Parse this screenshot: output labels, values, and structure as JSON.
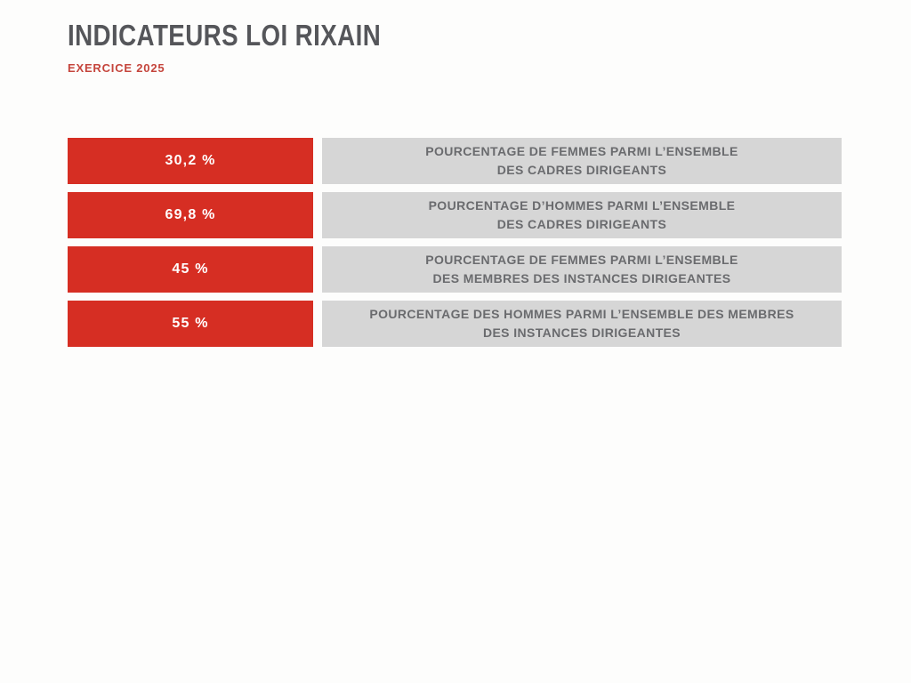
{
  "page": {
    "title": "INDICATEURS LOI RIXAIN",
    "subtitle": "EXERCICE 2025"
  },
  "colors": {
    "accent_red": "#d62e23",
    "subtitle_red": "#c5453c",
    "box_gray": "#d6d6d6",
    "label_text_gray": "#6a6b6e",
    "title_gray": "#55565a",
    "value_text": "#ffffff",
    "background": "#fdfdfc"
  },
  "indicators": [
    {
      "value": "30,2 %",
      "label_line1": "POURCENTAGE DE FEMMES PARMI L’ENSEMBLE",
      "label_line2": "DES CADRES DIRIGEANTS"
    },
    {
      "value": "69,8 %",
      "label_line1": "POURCENTAGE D’HOMMES PARMI L’ENSEMBLE",
      "label_line2": "DES CADRES DIRIGEANTS"
    },
    {
      "value": "45 %",
      "label_line1": "POURCENTAGE DE FEMMES PARMI L’ENSEMBLE",
      "label_line2": "DES MEMBRES DES INSTANCES DIRIGEANTES"
    },
    {
      "value": "55 %",
      "label_line1": "POURCENTAGE DES HOMMES PARMI L’ENSEMBLE DES MEMBRES",
      "label_line2": "DES INSTANCES DIRIGEANTES"
    }
  ]
}
